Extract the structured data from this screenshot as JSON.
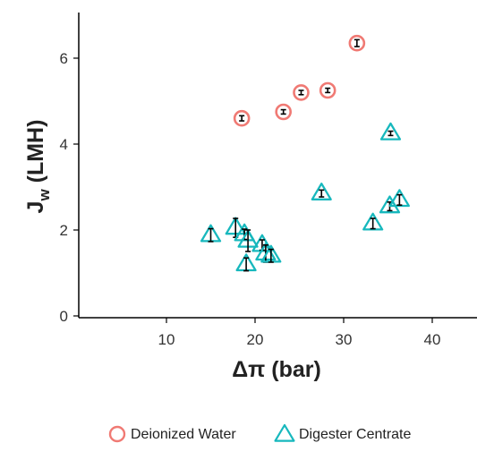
{
  "chart_data": {
    "type": "scatter",
    "xlabel_symbol": "Δπ",
    "xlabel_unit": "(bar)",
    "ylabel_main": "J",
    "ylabel_sub": "w",
    "ylabel_unit": "(LMH)",
    "x_ticks": [
      10,
      20,
      30,
      40
    ],
    "y_ticks": [
      0,
      2,
      4,
      6
    ],
    "xlim": [
      0,
      45
    ],
    "ylim": [
      0,
      7
    ],
    "grid": false,
    "legend_position": "bottom",
    "series": [
      {
        "name": "Deionized Water",
        "marker": "circle",
        "color": "#f07a74",
        "points": [
          {
            "x": 18.5,
            "y": 4.6,
            "err": 0.06
          },
          {
            "x": 23.2,
            "y": 4.75,
            "err": 0.05
          },
          {
            "x": 25.2,
            "y": 5.2,
            "err": 0.05
          },
          {
            "x": 28.2,
            "y": 5.25,
            "err": 0.05
          },
          {
            "x": 31.5,
            "y": 6.35,
            "err": 0.08
          }
        ]
      },
      {
        "name": "Digester Centrate",
        "marker": "triangle",
        "color": "#17b8bd",
        "points": [
          {
            "x": 15.0,
            "y": 1.88,
            "err": 0.15
          },
          {
            "x": 17.8,
            "y": 2.05,
            "err": 0.22
          },
          {
            "x": 18.8,
            "y": 1.9,
            "err": 0.12
          },
          {
            "x": 19.2,
            "y": 1.75,
            "err": 0.25
          },
          {
            "x": 19.0,
            "y": 1.2,
            "err": 0.15
          },
          {
            "x": 20.8,
            "y": 1.65,
            "err": 0.12
          },
          {
            "x": 21.2,
            "y": 1.45,
            "err": 0.2
          },
          {
            "x": 21.8,
            "y": 1.4,
            "err": 0.15
          },
          {
            "x": 27.5,
            "y": 2.85,
            "err": 0.08
          },
          {
            "x": 33.3,
            "y": 2.15,
            "err": 0.12
          },
          {
            "x": 35.3,
            "y": 4.25,
            "err": 0.05
          },
          {
            "x": 35.2,
            "y": 2.55,
            "err": 0.1
          },
          {
            "x": 36.3,
            "y": 2.7,
            "err": 0.12
          }
        ]
      }
    ]
  }
}
